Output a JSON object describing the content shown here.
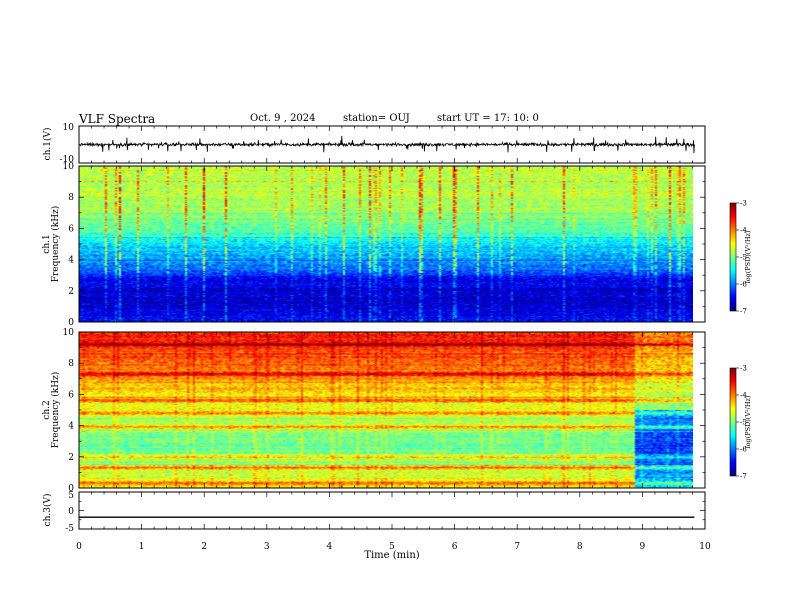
{
  "header": {
    "title": "VLF Spectra",
    "date": "Oct. 9 , 2024",
    "station": "station= OUJ",
    "start": "start UT = 17: 10: 0"
  },
  "chart_data": [
    {
      "type": "line",
      "panel": "ch1-waveform",
      "ylabel": "ch.1(V)",
      "ylim": [
        -10,
        10
      ],
      "yticks": [
        "10",
        "-10"
      ],
      "x_range_min": [
        0,
        9.83
      ],
      "y_baseline": 0,
      "y_typical_amplitude": 1.2
    },
    {
      "type": "heatmap",
      "panel": "ch1-spectrogram",
      "ylabel": "ch.1\nFrequency (kHz)",
      "ylim": [
        0,
        10
      ],
      "yticks": [
        "0",
        "2",
        "4",
        "6",
        "8",
        "10"
      ],
      "colorbar": {
        "label": "log(PSD)(V²/Hz)",
        "range": [
          -7,
          -3
        ],
        "ticks": [
          "-3",
          "-4",
          "-5",
          "-6",
          "-7"
        ]
      },
      "x_range_min": [
        0,
        9.83
      ],
      "freq_profile_kHz": [
        0,
        1,
        2,
        2.8,
        3.5,
        5,
        6,
        7,
        8,
        9,
        10
      ],
      "logpsd_profile": [
        -6.5,
        -6.7,
        -6.7,
        -6.5,
        -6.0,
        -5.6,
        -5.1,
        -4.9,
        -4.8,
        -4.8,
        -4.8
      ]
    },
    {
      "type": "heatmap",
      "panel": "ch2-spectrogram",
      "ylabel": "ch.2\nFrequency (kHz)",
      "ylim": [
        0,
        10
      ],
      "yticks": [
        "0",
        "2",
        "4",
        "6",
        "8",
        "10"
      ],
      "colorbar": {
        "label": "log(PSD)(V²/Hz)",
        "range": [
          -7,
          -3
        ],
        "ticks": [
          "-3",
          "-4",
          "-5",
          "-6",
          "-7"
        ]
      },
      "x_range_min": [
        0,
        9.83
      ],
      "freq_profile_kHz": [
        0,
        1,
        2,
        3,
        4,
        5,
        6,
        7,
        8,
        9,
        10
      ],
      "logpsd_profile": [
        -4.5,
        -4.7,
        -5.0,
        -5.1,
        -4.8,
        -4.6,
        -4.4,
        -4.1,
        -3.9,
        -3.7,
        -3.6
      ],
      "emission_lines_kHz": [
        0.3,
        1.3,
        2.0,
        3.9,
        4.8,
        5.6,
        7.3,
        9.2
      ],
      "change_at_min": 8.9,
      "after_change_offset": -1.2
    },
    {
      "type": "line",
      "panel": "ch3-waveform",
      "ylabel": "ch.3(V)",
      "ylim": [
        -5,
        5
      ],
      "yticks": [
        "5",
        "0",
        "-5"
      ],
      "x": [
        0,
        9.83
      ],
      "y": [
        -1.8,
        -1.8
      ]
    }
  ],
  "x_axis": {
    "label": "Time (min)",
    "xlim": [
      0,
      10
    ],
    "ticks": [
      "0",
      "1",
      "2",
      "3",
      "4",
      "5",
      "6",
      "7",
      "8",
      "9",
      "10"
    ]
  }
}
